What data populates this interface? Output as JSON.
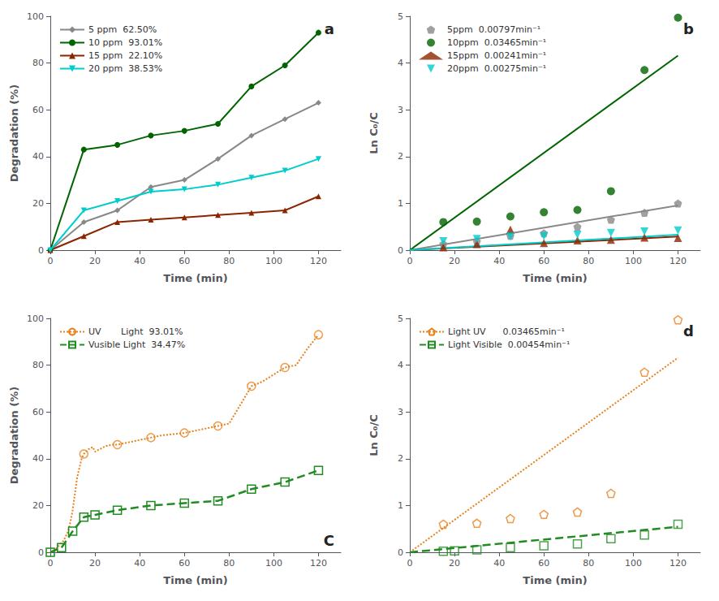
{
  "chart_data": [
    {
      "type": "line",
      "annotations": [
        "a"
      ],
      "xlabel": "Time (min)",
      "ylabel": "Degradation (%)",
      "xlim": [
        0,
        130
      ],
      "ylim": [
        0,
        100
      ],
      "xticks": [
        0,
        20,
        40,
        60,
        80,
        100,
        120
      ],
      "yticks": [
        0,
        20,
        40,
        60,
        80,
        100
      ],
      "grid": false,
      "legend": "upper left",
      "series": [
        {
          "name": "5 ppm  62.50%",
          "color": "#888888",
          "marker": "diamond",
          "line_style": "solid",
          "x": [
            0,
            15,
            30,
            45,
            60,
            75,
            90,
            105,
            120
          ],
          "values": [
            0,
            12,
            17,
            27,
            30,
            39,
            49,
            56,
            63
          ]
        },
        {
          "name": "10 ppm  93.01%",
          "color": "#006400",
          "marker": "circle",
          "line_style": "solid",
          "x": [
            0,
            15,
            30,
            45,
            60,
            75,
            90,
            105,
            120
          ],
          "values": [
            0,
            43,
            45,
            49,
            51,
            54,
            70,
            79,
            93
          ]
        },
        {
          "name": "15 ppm  22.10%",
          "color": "#8B2500",
          "marker": "triangle",
          "line_style": "solid",
          "x": [
            0,
            15,
            30,
            45,
            60,
            75,
            90,
            105,
            120
          ],
          "values": [
            0,
            6,
            12,
            13,
            14,
            15,
            16,
            17,
            23
          ]
        },
        {
          "name": "20 ppm  38.53%",
          "color": "#00CCCC",
          "marker": "triangle-down",
          "line_style": "solid",
          "x": [
            0,
            15,
            30,
            45,
            60,
            75,
            90,
            105,
            120
          ],
          "values": [
            0,
            17,
            21,
            25,
            26,
            28,
            31,
            34,
            39
          ]
        }
      ]
    },
    {
      "type": "scatter",
      "annotations": [
        "b"
      ],
      "xlabel": "Time (min)",
      "ylabel": "Ln C₀/C",
      "xlim": [
        0,
        130
      ],
      "ylim": [
        0,
        5
      ],
      "xticks": [
        0,
        20,
        40,
        60,
        80,
        100,
        120
      ],
      "yticks": [
        0,
        1,
        2,
        3,
        4,
        5
      ],
      "grid": false,
      "legend": "upper left",
      "series": [
        {
          "name": "5ppm  0.00797min⁻¹",
          "color": "#888888",
          "marker": "pentagon",
          "x": [
            15,
            30,
            45,
            60,
            75,
            90,
            105,
            120
          ],
          "values": [
            0.13,
            0.19,
            0.31,
            0.36,
            0.5,
            0.65,
            0.8,
            1.0
          ]
        },
        {
          "type": "line",
          "color": "#888888",
          "marker": "none",
          "line_style": "solid",
          "x": [
            0,
            120
          ],
          "values": [
            0,
            0.9564
          ]
        },
        {
          "name": "10ppm  0.03465min⁻¹",
          "color": "#006400",
          "marker": "circle",
          "x": [
            15,
            30,
            45,
            60,
            75,
            90,
            105,
            120
          ],
          "values": [
            0.6,
            0.61,
            0.72,
            0.81,
            0.86,
            1.26,
            3.85,
            4.97
          ]
        },
        {
          "type": "line",
          "color": "#006400",
          "marker": "none",
          "line_style": "solid",
          "x": [
            0,
            120
          ],
          "values": [
            0,
            4.158
          ]
        },
        {
          "name": "15ppm  0.00241min⁻¹",
          "color": "#8B2500",
          "marker": "triangle",
          "x": [
            15,
            30,
            45,
            60,
            75,
            90,
            105,
            120
          ],
          "values": [
            0.06,
            0.13,
            0.44,
            0.15,
            0.21,
            0.22,
            0.27,
            0.26
          ]
        },
        {
          "type": "line",
          "color": "#8B2500",
          "marker": "none",
          "line_style": "solid",
          "x": [
            0,
            120
          ],
          "values": [
            0,
            0.2892
          ]
        },
        {
          "name": "20ppm  0.00275min⁻¹",
          "color": "#00CCCC",
          "marker": "triangle-down",
          "x": [
            15,
            30,
            45,
            60,
            75,
            90,
            105,
            120
          ],
          "values": [
            0.19,
            0.24,
            0.29,
            0.3,
            0.33,
            0.37,
            0.4,
            0.42
          ]
        },
        {
          "type": "line",
          "color": "#00CCCC",
          "marker": "none",
          "line_style": "solid",
          "x": [
            0,
            120
          ],
          "values": [
            0,
            0.33
          ]
        }
      ]
    },
    {
      "type": "line",
      "annotations": [
        "C"
      ],
      "xlabel": "Time (min)",
      "ylabel": "Degradation (%)",
      "xlim": [
        0,
        130
      ],
      "ylim": [
        0,
        100
      ],
      "xticks": [
        0,
        20,
        40,
        60,
        80,
        100,
        120
      ],
      "yticks": [
        0,
        20,
        40,
        60,
        80,
        100
      ],
      "grid": false,
      "legend": "upper left",
      "series": [
        {
          "name": "UV       Light  93.01%",
          "color": "#E8801A",
          "marker": "none",
          "line_style": "dotted",
          "x": [
            0,
            1,
            2,
            3,
            4,
            5,
            6,
            7,
            8,
            9,
            10,
            11,
            12,
            13,
            14,
            15,
            16,
            17,
            18,
            19,
            20,
            21,
            22,
            23,
            24,
            25,
            26,
            27,
            28,
            29,
            30,
            35,
            40,
            45,
            50,
            55,
            60,
            65,
            70,
            75,
            80,
            85,
            90,
            95,
            100,
            105,
            110,
            115,
            120
          ],
          "values": [
            0,
            0.5,
            1,
            2,
            3,
            4,
            5,
            7,
            9,
            13,
            18,
            25,
            32,
            36,
            40,
            42,
            43,
            44,
            44.5,
            45,
            43,
            43.5,
            44,
            44.5,
            45,
            45.5,
            45.5,
            46,
            46,
            46,
            46,
            47,
            48,
            49,
            50,
            50.5,
            51,
            52,
            53,
            54,
            55,
            63,
            71,
            73,
            76,
            79,
            80,
            87,
            93
          ]
        },
        {
          "type": "scatter",
          "name": "UV       Light  93.01%",
          "color": "#E8801A",
          "marker": "open circle",
          "x": [
            15,
            30,
            45,
            60,
            75,
            90,
            105,
            120
          ],
          "values": [
            42,
            46,
            49,
            51,
            54,
            71,
            79,
            93
          ]
        },
        {
          "name": "Vusible Light  34.47%",
          "color": "#228B22",
          "marker": "open square",
          "line_style": "dashed",
          "x": [
            0,
            5,
            10,
            15,
            20,
            30,
            45,
            60,
            75,
            90,
            105,
            120
          ],
          "values": [
            0,
            2,
            9,
            15,
            16,
            18,
            20,
            21,
            22,
            27,
            30,
            35
          ]
        }
      ]
    },
    {
      "type": "scatter",
      "annotations": [
        "d"
      ],
      "xlabel": "Time (min)",
      "ylabel": "Ln C₀/C",
      "xlim": [
        0,
        130
      ],
      "ylim": [
        0,
        5
      ],
      "xticks": [
        0,
        20,
        40,
        60,
        80,
        100,
        120
      ],
      "yticks": [
        0,
        1,
        2,
        3,
        4,
        5
      ],
      "grid": false,
      "legend": "upper left",
      "series": [
        {
          "type": "line",
          "name": "Light UV      0.03465min⁻¹",
          "color": "#E8801A",
          "marker": "none",
          "line_style": "dotted",
          "x": [
            0,
            120
          ],
          "values": [
            0,
            4.158
          ]
        },
        {
          "name": "Light UV      0.03465min⁻¹",
          "color": "#E8801A",
          "marker": "open pentagon",
          "x": [
            15,
            30,
            45,
            60,
            75,
            90,
            105,
            120
          ],
          "values": [
            0.6,
            0.62,
            0.72,
            0.81,
            0.86,
            1.26,
            3.85,
            4.97
          ]
        },
        {
          "type": "line",
          "name": "Light Visible  0.00454min⁻¹",
          "color": "#228B22",
          "marker": "none",
          "line_style": "dashed",
          "x": [
            0,
            120
          ],
          "values": [
            0,
            0.5448
          ]
        },
        {
          "name": "Light Visible  0.00454min⁻¹",
          "color": "#228B22",
          "marker": "open square",
          "x": [
            15,
            20,
            30,
            45,
            60,
            75,
            90,
            105,
            120
          ],
          "values": [
            0.02,
            0.03,
            0.05,
            0.1,
            0.14,
            0.18,
            0.29,
            0.37,
            0.6
          ]
        }
      ]
    }
  ]
}
